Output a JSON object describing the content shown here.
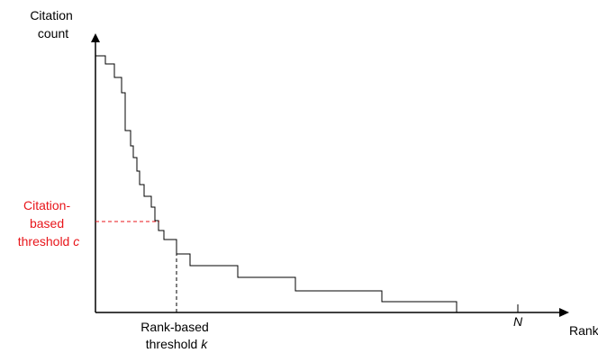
{
  "y_axis_label": [
    "Citation",
    "count"
  ],
  "x_axis_label": "Rank",
  "n_label": "N",
  "citation_threshold_label": {
    "line1": "Citation-",
    "line2": "based",
    "line3_prefix": "threshold ",
    "line3_var": "c"
  },
  "rank_threshold_label": {
    "line1": "Rank-based",
    "line2_prefix": "threshold ",
    "line2_var": "k"
  },
  "colors": {
    "axis": "#000000",
    "curve": "#000000",
    "citation_threshold": "#e8161b",
    "rank_threshold": "#000000"
  }
}
